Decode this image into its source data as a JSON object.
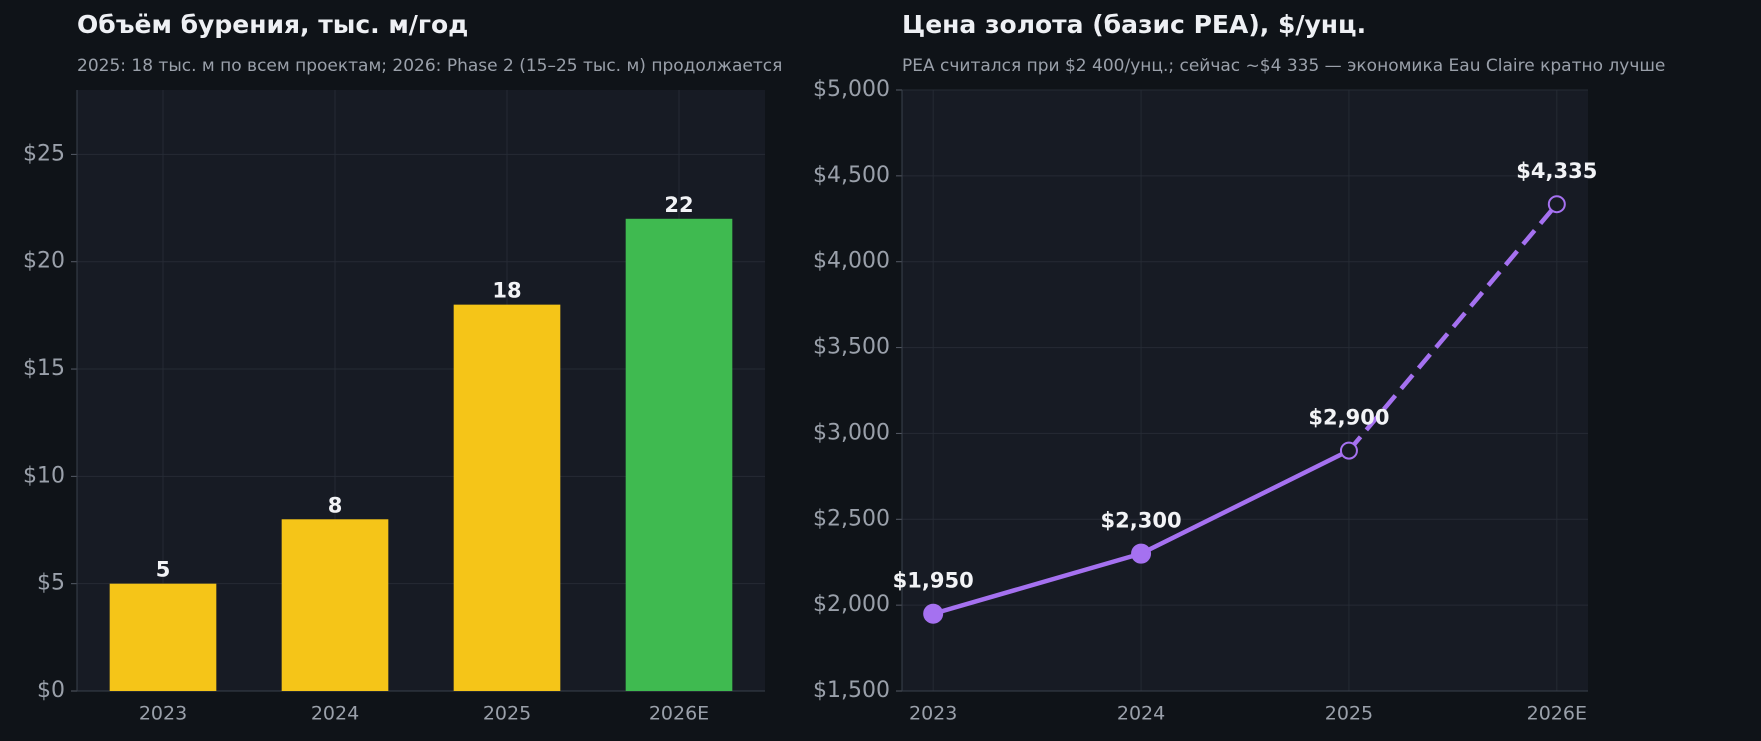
{
  "chart_data": [
    {
      "type": "bar",
      "title": "Объём бурения, тыс. м/год",
      "subtitle": "2025: 18 тыс. м по всем проектам; 2026: Phase 2 (15–25 тыс. м) продолжается",
      "categories": [
        "2023",
        "2024",
        "2025",
        "2026E"
      ],
      "values": [
        5,
        8,
        18,
        22
      ],
      "colors": [
        "#f5c518",
        "#f5c518",
        "#f5c518",
        "#3fba50"
      ],
      "ylim": [
        0,
        28
      ],
      "yticks": [
        {
          "value": 0,
          "label": "$0"
        },
        {
          "value": 5,
          "label": "$5"
        },
        {
          "value": 10,
          "label": "$10"
        },
        {
          "value": 15,
          "label": "$15"
        },
        {
          "value": 20,
          "label": "$20"
        },
        {
          "value": 25,
          "label": "$25"
        }
      ],
      "grid": true
    },
    {
      "type": "line",
      "title": "Цена золота (базис PEA), $/унц.",
      "subtitle": "PEA считался при $2 400/унц.; сейчас ~$4 335 — экономика Eau Claire кратно лучше",
      "categories": [
        "2023",
        "2024",
        "2025",
        "2026E"
      ],
      "values": [
        1950,
        2300,
        2900,
        4335
      ],
      "value_labels": [
        "$1,950",
        "$2,300",
        "$2,900",
        "$4,335"
      ],
      "color": "#a571f0",
      "line_styles": [
        "solid",
        "solid",
        "dashed"
      ],
      "markers": [
        "filled",
        "filled",
        "hollow",
        "hollow"
      ],
      "ylim": [
        1500,
        5000
      ],
      "yticks": [
        {
          "value": 1500,
          "label": "$1,500"
        },
        {
          "value": 2000,
          "label": "$2,000"
        },
        {
          "value": 2500,
          "label": "$2,500"
        },
        {
          "value": 3000,
          "label": "$3,000"
        },
        {
          "value": 3500,
          "label": "$3,500"
        },
        {
          "value": 4000,
          "label": "$4,000"
        },
        {
          "value": 4500,
          "label": "$4,500"
        },
        {
          "value": 5000,
          "label": "$5,000"
        }
      ],
      "grid": true
    }
  ]
}
